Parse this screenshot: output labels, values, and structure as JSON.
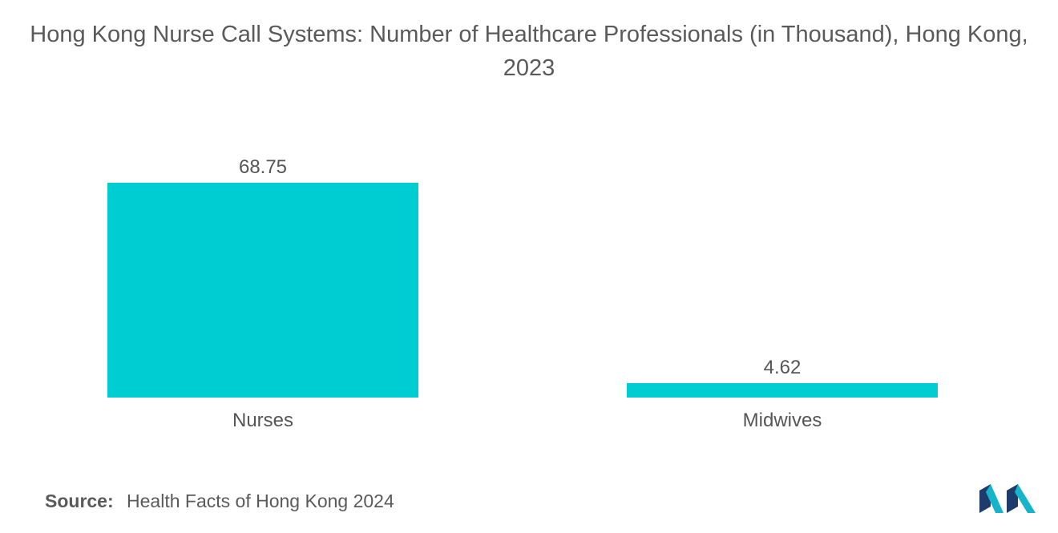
{
  "title": "Hong Kong Nurse Call Systems: Number of Healthcare Professionals (in Thousand), Hong Kong, 2023",
  "source": {
    "label": "Source:",
    "text": "Health Facts of Hong Kong 2024"
  },
  "colors": {
    "bar": "#00cdd1",
    "text": "#555555",
    "logo_dark": "#1d3b6b",
    "logo_teal": "#17b3c8"
  },
  "logo": "mordor-intelligence-logo",
  "chart_data": {
    "type": "bar",
    "categories": [
      "Nurses",
      "Midwives"
    ],
    "values": [
      68.75,
      4.62
    ],
    "data_labels": [
      "68.75",
      "4.62"
    ],
    "title": "Hong Kong Nurse Call Systems: Number of Healthcare Professionals (in Thousand), Hong Kong, 2023",
    "xlabel": "",
    "ylabel": "",
    "ylim": [
      0,
      68.75
    ],
    "grid": false,
    "legend": "none"
  }
}
